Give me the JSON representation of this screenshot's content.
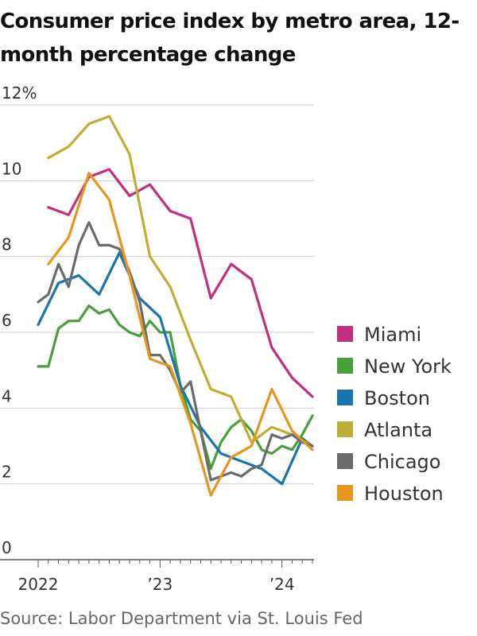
{
  "page": {
    "title": "Consumer price index by metro area, 12-month percentage change",
    "source": "Source: Labor Department via St. Louis Fed"
  },
  "chart_data": {
    "type": "line",
    "title": "Consumer price index by metro area, 12-month percentage change",
    "xlabel": "",
    "ylabel": "",
    "ylim": [
      0,
      12
    ],
    "yticks": [
      0,
      2,
      4,
      6,
      8,
      10,
      12
    ],
    "ytick_labels": [
      "0",
      "2",
      "4",
      "6",
      "8",
      "10",
      "12%"
    ],
    "xlim": [
      "2022-01",
      "2024-04"
    ],
    "xticks": [
      "2022-01",
      "2023-01",
      "2024-01"
    ],
    "xtick_labels": [
      "2022",
      "’23",
      "’24"
    ],
    "grid": "horizontal",
    "legend_position": "right",
    "series": [
      {
        "name": "Miami",
        "color": "#c0307f",
        "x": [
          "2022-02",
          "2022-04",
          "2022-06",
          "2022-08",
          "2022-10",
          "2022-12",
          "2023-02",
          "2023-04",
          "2023-06",
          "2023-08",
          "2023-10",
          "2023-12",
          "2024-02",
          "2024-04"
        ],
        "values": [
          9.3,
          9.1,
          10.1,
          10.3,
          9.6,
          9.9,
          9.2,
          9.0,
          6.9,
          7.8,
          7.4,
          5.6,
          4.8,
          4.3
        ]
      },
      {
        "name": "New York",
        "color": "#4a9f3c",
        "x": [
          "2022-01",
          "2022-02",
          "2022-03",
          "2022-04",
          "2022-05",
          "2022-06",
          "2022-07",
          "2022-08",
          "2022-09",
          "2022-10",
          "2022-11",
          "2022-12",
          "2023-01",
          "2023-02",
          "2023-03",
          "2023-04",
          "2023-05",
          "2023-06",
          "2023-07",
          "2023-08",
          "2023-09",
          "2023-10",
          "2023-11",
          "2023-12",
          "2024-01",
          "2024-02",
          "2024-03",
          "2024-04"
        ],
        "values": [
          5.1,
          5.1,
          6.1,
          6.3,
          6.3,
          6.7,
          6.5,
          6.6,
          6.2,
          6.0,
          5.9,
          6.3,
          6.0,
          6.0,
          4.6,
          3.7,
          3.4,
          2.4,
          3.1,
          3.5,
          3.7,
          3.4,
          2.9,
          2.8,
          3.0,
          2.9,
          3.3,
          3.8
        ]
      },
      {
        "name": "Boston",
        "color": "#1a75ac",
        "x": [
          "2022-01",
          "2022-03",
          "2022-05",
          "2022-07",
          "2022-09",
          "2022-11",
          "2023-01",
          "2023-03",
          "2023-05",
          "2023-07",
          "2023-09",
          "2023-11",
          "2024-01",
          "2024-03",
          "2024-04"
        ],
        "values": [
          6.2,
          7.3,
          7.5,
          7.0,
          8.1,
          6.9,
          6.4,
          4.6,
          3.5,
          2.8,
          2.6,
          2.4,
          2.0,
          3.2,
          3.0
        ]
      },
      {
        "name": "Atlanta",
        "color": "#bfae35",
        "x": [
          "2022-02",
          "2022-04",
          "2022-06",
          "2022-08",
          "2022-10",
          "2022-12",
          "2023-02",
          "2023-04",
          "2023-06",
          "2023-08",
          "2023-10",
          "2023-12",
          "2024-02",
          "2024-04"
        ],
        "values": [
          10.6,
          10.9,
          11.5,
          11.7,
          10.7,
          8.0,
          7.2,
          5.8,
          4.5,
          4.3,
          3.1,
          3.5,
          3.3,
          3.0
        ]
      },
      {
        "name": "Chicago",
        "color": "#6b6b6b",
        "x": [
          "2022-01",
          "2022-02",
          "2022-03",
          "2022-04",
          "2022-05",
          "2022-06",
          "2022-07",
          "2022-08",
          "2022-09",
          "2022-10",
          "2022-11",
          "2022-12",
          "2023-01",
          "2023-02",
          "2023-03",
          "2023-04",
          "2023-05",
          "2023-06",
          "2023-07",
          "2023-08",
          "2023-09",
          "2023-10",
          "2023-11",
          "2023-12",
          "2024-01",
          "2024-02",
          "2024-03",
          "2024-04"
        ],
        "values": [
          6.8,
          7.0,
          7.8,
          7.2,
          8.3,
          8.9,
          8.3,
          8.3,
          8.2,
          7.6,
          6.8,
          5.4,
          5.4,
          5.0,
          4.4,
          4.7,
          3.4,
          2.1,
          2.2,
          2.3,
          2.2,
          2.4,
          2.5,
          3.3,
          3.2,
          3.3,
          3.1,
          3.0
        ]
      },
      {
        "name": "Houston",
        "color": "#e6961f",
        "x": [
          "2022-02",
          "2022-04",
          "2022-06",
          "2022-08",
          "2022-10",
          "2022-12",
          "2023-02",
          "2023-04",
          "2023-06",
          "2023-08",
          "2023-10",
          "2023-12",
          "2024-02",
          "2024-04"
        ],
        "values": [
          7.8,
          8.5,
          10.2,
          9.5,
          7.5,
          5.3,
          5.1,
          3.6,
          1.7,
          2.7,
          3.0,
          4.5,
          3.4,
          2.9
        ]
      }
    ]
  }
}
